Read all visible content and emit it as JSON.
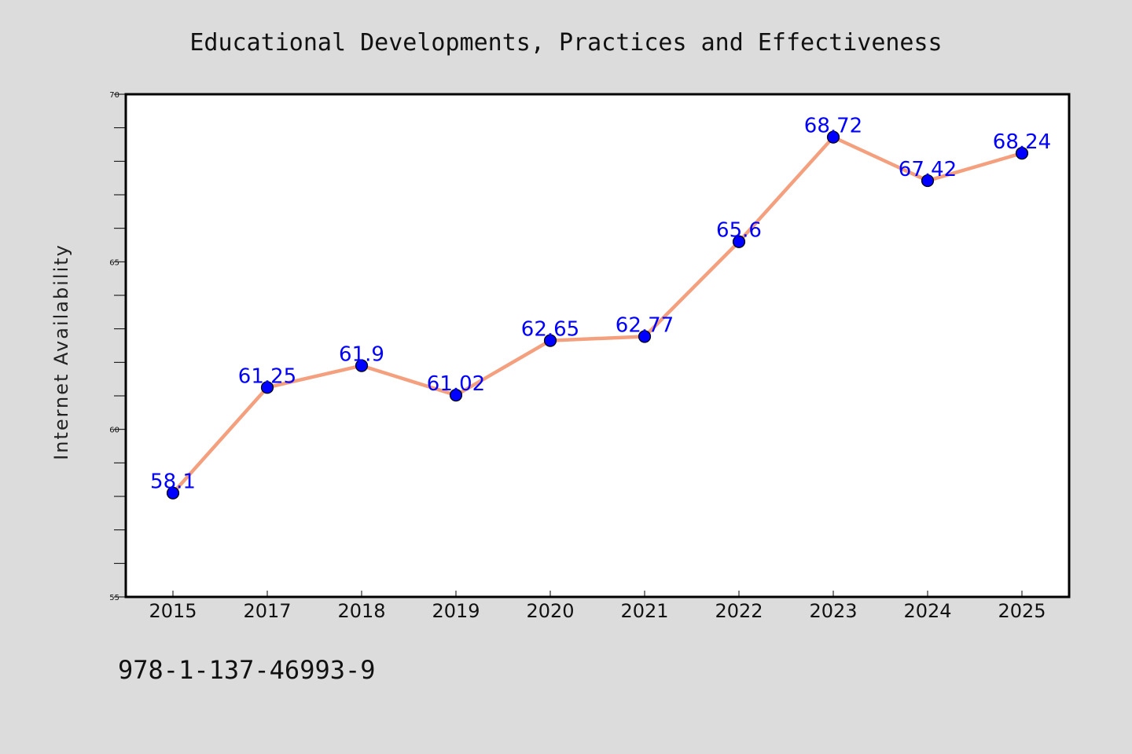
{
  "chart_data": {
    "type": "line",
    "title": "Educational Developments, Practices and Effectiveness",
    "ylabel": "Internet Availability",
    "xlabel": "",
    "categories": [
      "2015",
      "2017",
      "2018",
      "2019",
      "2020",
      "2021",
      "2022",
      "2023",
      "2024",
      "2025"
    ],
    "series": [
      {
        "values": [
          58.1,
          61.25,
          61.9,
          61.02,
          62.65,
          62.77,
          65.6,
          68.72,
          67.42,
          68.24
        ],
        "line_color": "#f4a07f",
        "marker_color": "#0000ff"
      }
    ],
    "data_labels": [
      "58.1",
      "61.25",
      "61.9",
      "61.02",
      "62.65",
      "62.77",
      "65.6",
      "68.72",
      "67.42",
      "68.24"
    ],
    "ylim": [
      55,
      70
    ],
    "yticks": [
      "55",
      "60",
      "65",
      "70"
    ],
    "grid": false,
    "legend": "none"
  },
  "footer_text": "978-1-137-46993-9",
  "colors": {
    "background": "#dcdcdc",
    "plot_background": "#ffffff",
    "data_label": "#0000ff"
  }
}
